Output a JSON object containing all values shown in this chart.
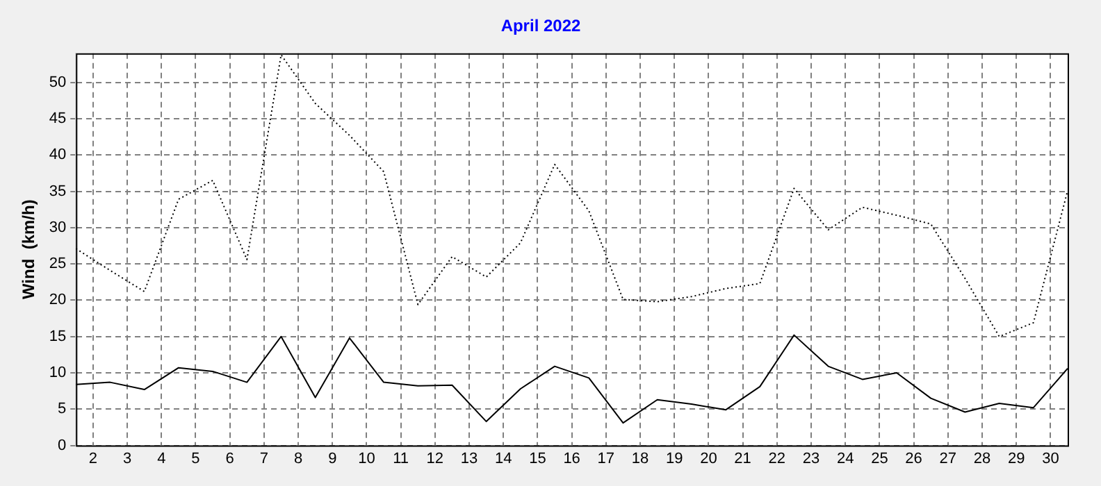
{
  "chart_data": {
    "type": "line",
    "title": "April 2022",
    "ylabel": "Wind  (km/h)",
    "x": [
      1.5,
      2.5,
      3.5,
      4.5,
      5.5,
      6.5,
      7.5,
      8.5,
      9.5,
      10.5,
      11.5,
      12.5,
      13.5,
      14.5,
      15.5,
      16.5,
      17.5,
      18.5,
      19.5,
      20.5,
      21.5,
      22.5,
      23.5,
      24.5,
      25.5,
      26.5,
      27.5,
      28.5,
      29.5,
      30.5
    ],
    "series": [
      {
        "color": "#000000",
        "line_style": "dotted",
        "values": [
          27.1,
          24.1,
          21.2,
          33.9,
          36.5,
          25.6,
          53.8,
          47.1,
          42.7,
          37.7,
          19.4,
          26.0,
          23.2,
          27.9,
          38.7,
          32.3,
          20.1,
          19.8,
          20.5,
          21.6,
          22.3,
          35.4,
          29.7,
          32.8,
          31.7,
          30.5,
          23.0,
          15.0,
          16.9,
          35.1
        ]
      },
      {
        "color": "#000000",
        "line_style": "solid",
        "values": [
          8.4,
          8.7,
          7.7,
          10.7,
          10.2,
          8.7,
          15.0,
          6.6,
          14.8,
          8.7,
          8.2,
          8.3,
          3.3,
          7.8,
          10.9,
          9.3,
          3.1,
          6.3,
          5.7,
          4.9,
          8.1,
          15.2,
          10.9,
          9.1,
          10.0,
          6.5,
          4.6,
          5.8,
          5.2,
          10.6
        ]
      }
    ],
    "xlim": [
      1.5,
      30.5
    ],
    "xticks": [
      2,
      3,
      4,
      5,
      6,
      7,
      8,
      9,
      10,
      11,
      12,
      13,
      14,
      15,
      16,
      17,
      18,
      19,
      20,
      21,
      22,
      23,
      24,
      25,
      26,
      27,
      28,
      29,
      30
    ],
    "ylim": [
      0,
      54
    ],
    "yticks": [
      0,
      5,
      10,
      15,
      20,
      25,
      30,
      35,
      40,
      45,
      50
    ],
    "grid": true,
    "legend": false,
    "marker": "none"
  }
}
